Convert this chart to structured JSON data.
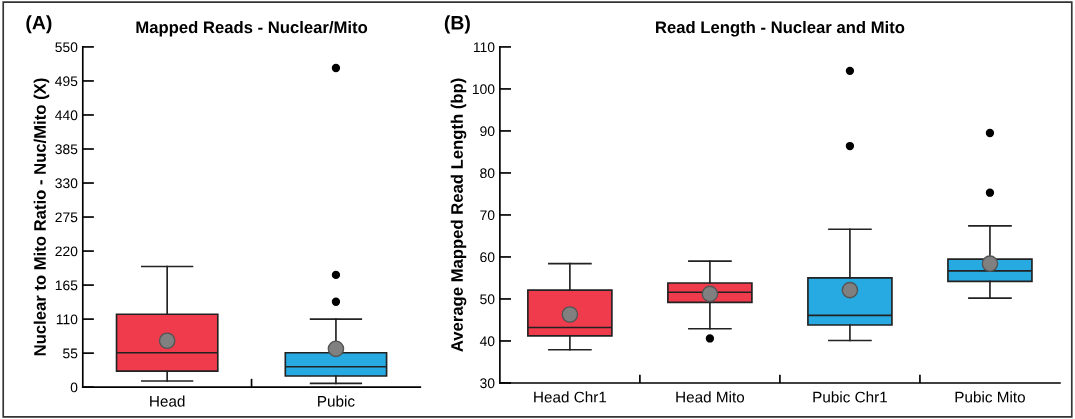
{
  "chart_data": [
    {
      "type": "box",
      "title": "Mapped Reads - Nuclear/Mito",
      "ylabel": "Nuclear to Mito Ratio - Nuc/Mito (X)",
      "annotations": [
        "(A)"
      ],
      "categories": [
        "Head",
        "Pubic"
      ],
      "colors": [
        "#ef3b4c",
        "#27aae1"
      ],
      "boxes": [
        {
          "low": 10,
          "q1": 26,
          "median": 55.6,
          "q3": 117.8,
          "high": 195,
          "mean": 75
        },
        {
          "low": 6,
          "q1": 18,
          "median": 33,
          "q3": 55.6,
          "high": 110,
          "mean": 62,
          "outliers": [
            138,
            181.5,
            516
          ]
        }
      ],
      "ylim": [
        0,
        550
      ],
      "yticks": [
        0,
        55,
        110,
        165,
        220,
        275,
        330,
        385,
        440,
        495,
        550
      ],
      "grid": false,
      "legend": false
    },
    {
      "type": "box",
      "title": "Read Length - Nuclear and Mito",
      "ylabel": "Average Mapped Read Length (bp)",
      "annotations": [
        "(B)"
      ],
      "categories": [
        "Head Chr1",
        "Head Mito",
        "Pubic Chr1",
        "Pubic Mito"
      ],
      "colors": [
        "#ef3b4c",
        "#ef3b4c",
        "#27aae1",
        "#27aae1"
      ],
      "boxes": [
        {
          "low": 37.9,
          "q1": 41.2,
          "median": 43.2,
          "q3": 52.1,
          "high": 58.4,
          "mean": 46.3
        },
        {
          "low": 42.9,
          "q1": 49.2,
          "median": 51.6,
          "q3": 53.8,
          "high": 59.0,
          "mean": 51.2,
          "outliers": [
            40.6
          ]
        },
        {
          "low": 40.1,
          "q1": 43.8,
          "median": 46.1,
          "q3": 55.0,
          "high": 66.6,
          "mean": 52.1,
          "outliers": [
            86.4,
            104.3
          ]
        },
        {
          "low": 50.2,
          "q1": 54.2,
          "median": 56.7,
          "q3": 59.5,
          "high": 67.4,
          "mean": 58.4,
          "outliers": [
            75.3,
            89.5
          ]
        }
      ],
      "ylim": [
        30,
        110
      ],
      "yticks": [
        30,
        40,
        50,
        60,
        70,
        80,
        90,
        100,
        110
      ],
      "grid": false,
      "legend": false
    }
  ]
}
